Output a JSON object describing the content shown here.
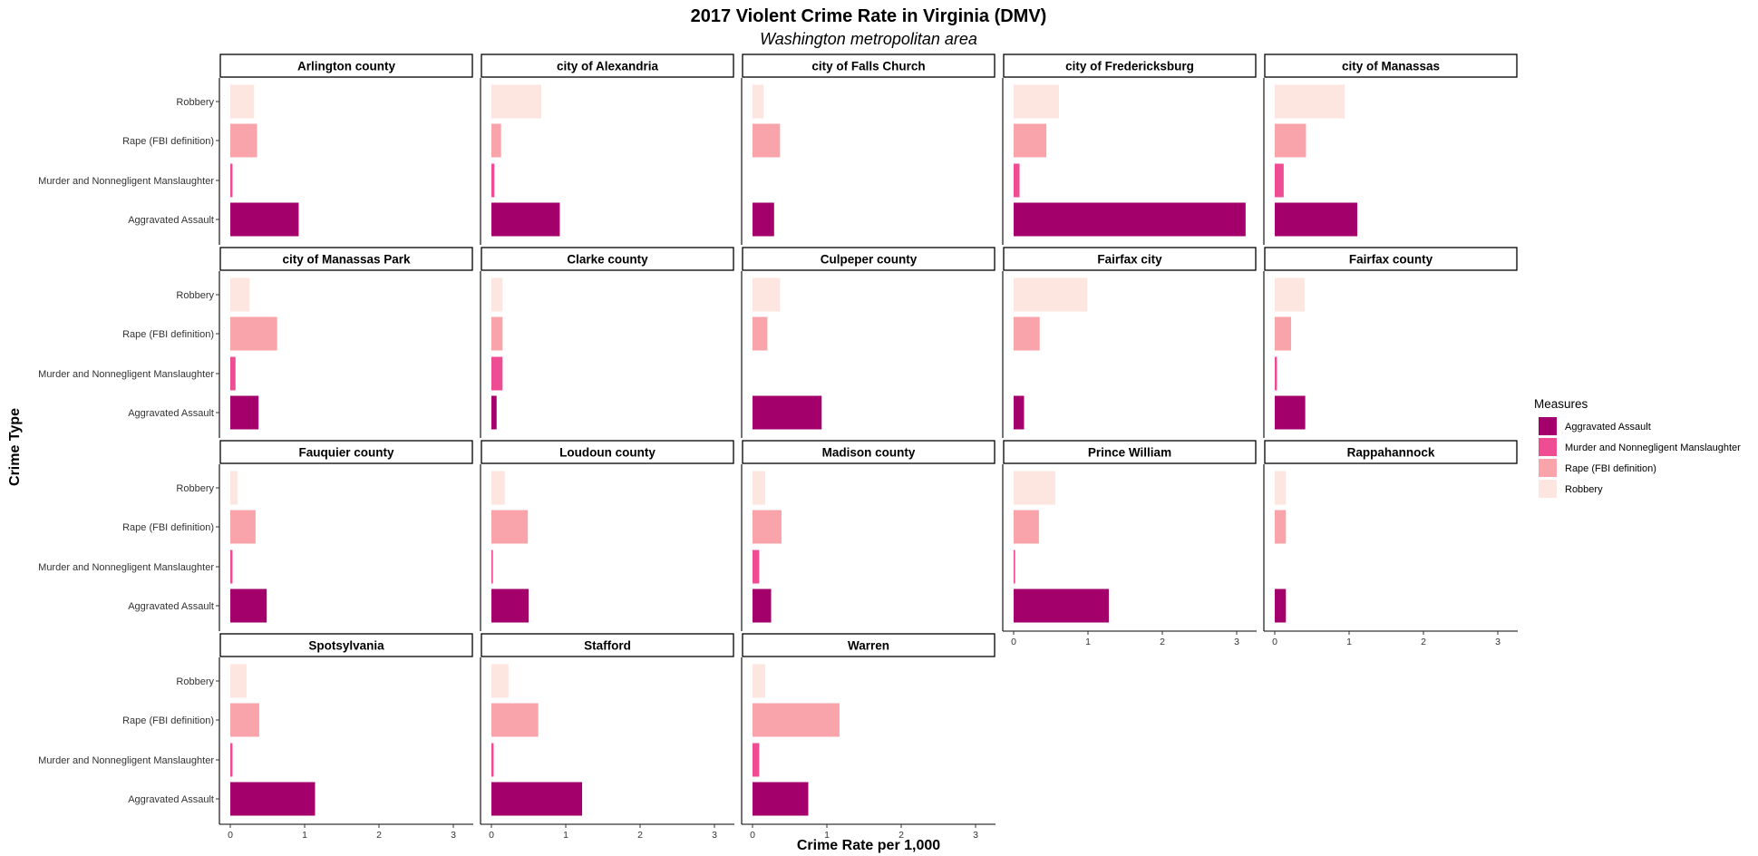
{
  "chart_data": {
    "type": "bar",
    "orientation": "horizontal",
    "title": "2017 Violent Crime Rate in Virginia (DMV)",
    "subtitle": "Washington metropolitan area",
    "xlabel": "Crime Rate per 1,000",
    "ylabel": "Crime Type",
    "xlim": [
      0,
      3.25
    ],
    "x_ticks": [
      0,
      1,
      2,
      3
    ],
    "grid": false,
    "legend": {
      "title": "Measures",
      "placement": "right",
      "entries": [
        {
          "name": "Aggravated Assault",
          "color": "#a3006b"
        },
        {
          "name": "Murder and Nonnegligent Manslaughter",
          "color": "#ee4d93"
        },
        {
          "name": "Rape (FBI definition)",
          "color": "#f9a4ab"
        },
        {
          "name": "Robbery",
          "color": "#fde6df"
        }
      ]
    },
    "categories": [
      "Aggravated Assault",
      "Murder and Nonnegligent Manslaughter",
      "Rape (FBI definition)",
      "Robbery"
    ],
    "facets": [
      {
        "name": "Arlington county",
        "values": [
          0.92,
          0.03,
          0.36,
          0.32
        ]
      },
      {
        "name": "city of Alexandria",
        "values": [
          0.92,
          0.04,
          0.13,
          0.67
        ]
      },
      {
        "name": "city of Falls Church",
        "values": [
          0.29,
          0.0,
          0.37,
          0.15
        ]
      },
      {
        "name": "city of Fredericksburg",
        "values": [
          3.12,
          0.08,
          0.44,
          0.61
        ]
      },
      {
        "name": "city of Manassas",
        "values": [
          1.11,
          0.12,
          0.42,
          0.94
        ]
      },
      {
        "name": "city of Manassas Park",
        "values": [
          0.38,
          0.07,
          0.63,
          0.26
        ]
      },
      {
        "name": "Clarke county",
        "values": [
          0.07,
          0.15,
          0.15,
          0.15
        ]
      },
      {
        "name": "Culpeper county",
        "values": [
          0.93,
          0.0,
          0.2,
          0.37
        ]
      },
      {
        "name": "Fairfax city",
        "values": [
          0.14,
          0.0,
          0.35,
          0.99
        ]
      },
      {
        "name": "Fairfax county",
        "values": [
          0.41,
          0.03,
          0.22,
          0.4
        ]
      },
      {
        "name": "Fauquier county",
        "values": [
          0.49,
          0.03,
          0.34,
          0.1
        ]
      },
      {
        "name": "Loudoun county",
        "values": [
          0.5,
          0.02,
          0.49,
          0.18
        ]
      },
      {
        "name": "Madison county",
        "values": [
          0.25,
          0.09,
          0.39,
          0.17
        ]
      },
      {
        "name": "Prince William",
        "values": [
          1.28,
          0.02,
          0.34,
          0.56
        ]
      },
      {
        "name": "Rappahannock",
        "values": [
          0.15,
          0.0,
          0.15,
          0.15
        ]
      },
      {
        "name": "Spotsylvania",
        "values": [
          1.14,
          0.03,
          0.39,
          0.22
        ]
      },
      {
        "name": "Stafford",
        "values": [
          1.22,
          0.03,
          0.63,
          0.23
        ]
      },
      {
        "name": "Warren",
        "values": [
          0.75,
          0.09,
          1.17,
          0.17
        ]
      }
    ]
  }
}
